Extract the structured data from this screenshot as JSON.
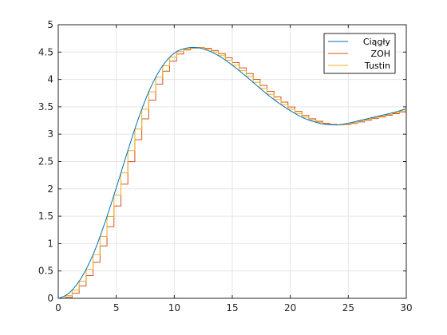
{
  "chart_data": {
    "type": "line",
    "title": "",
    "xlabel": "",
    "ylabel": "",
    "xlim": [
      0,
      30
    ],
    "ylim": [
      0,
      5
    ],
    "x_ticks": [
      0,
      5,
      10,
      15,
      20,
      25,
      30
    ],
    "x_tick_labels": [
      "0",
      "5",
      "10",
      "15",
      "20",
      "25",
      "30"
    ],
    "y_ticks": [
      0,
      0.5,
      1,
      1.5,
      2,
      2.5,
      3,
      3.5,
      4,
      4.5,
      5
    ],
    "y_tick_labels": [
      "0",
      "0.5",
      "1",
      "1.5",
      "2",
      "2.5",
      "3",
      "3.5",
      "4",
      "4.5",
      "5"
    ],
    "grid": true,
    "legend_position": "top-right",
    "sample_time": 0.6,
    "reference_x": [
      0,
      1,
      2,
      3,
      4,
      5,
      6,
      7,
      8,
      9,
      10,
      11,
      12,
      13,
      14,
      15,
      16,
      17,
      18,
      19,
      20,
      21,
      22,
      23,
      24,
      25,
      26,
      27,
      28,
      29,
      30
    ],
    "reference_y": [
      0,
      0.11,
      0.38,
      0.8,
      1.37,
      2.02,
      2.7,
      3.34,
      3.87,
      4.25,
      4.48,
      4.57,
      4.58,
      4.52,
      4.41,
      4.26,
      4.09,
      3.91,
      3.73,
      3.57,
      3.43,
      3.31,
      3.23,
      3.18,
      3.17,
      3.2,
      3.25,
      3.3,
      3.35,
      3.4,
      3.46
    ],
    "series": [
      {
        "name": "Ciągły",
        "style": "line",
        "color": "#0072BD"
      },
      {
        "name": "ZOH",
        "style": "stairs",
        "color": "#D95319"
      },
      {
        "name": "Tustin",
        "style": "stairs",
        "color": "#EDB120"
      }
    ]
  }
}
